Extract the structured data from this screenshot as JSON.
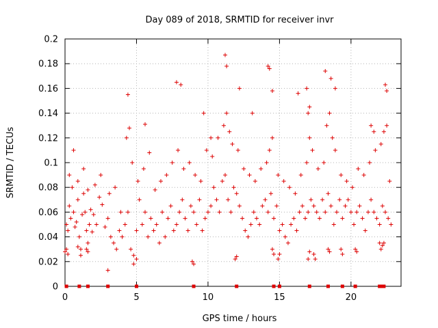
{
  "chart_data": {
    "type": "scatter",
    "title": "Day 089 of 2018, SRMTID for receiver invr",
    "xlabel": "GPS time / hours",
    "ylabel": "SRMTID / TECUs",
    "xlim": [
      0,
      23.5
    ],
    "ylim": [
      0,
      0.2
    ],
    "x_ticks": [
      0,
      5,
      10,
      15,
      20
    ],
    "y_ticks": [
      0,
      0.02,
      0.04,
      0.06,
      0.08,
      0.1,
      0.12,
      0.14,
      0.16,
      0.18,
      0.2
    ],
    "x_tick_labels": [
      "0",
      "5",
      "10",
      "15",
      "20"
    ],
    "y_tick_labels": [
      "0",
      "0.02",
      "0.04",
      "0.06",
      "0.08",
      "0.1",
      "0.12",
      "0.14",
      "0.16",
      "0.18",
      "0.2"
    ],
    "grid": true,
    "marker": "+",
    "color": "#dd0000",
    "series": [
      {
        "name": "SRMTID",
        "x": [
          0.1,
          0.2,
          0.3,
          0.4,
          0.5,
          0.6,
          0.7,
          0.8,
          0.9,
          1.0,
          1.1,
          1.2,
          1.3,
          1.4,
          1.5,
          1.6,
          1.7,
          1.8,
          1.9,
          2.0,
          2.2,
          2.4,
          2.6,
          2.8,
          3.0,
          3.2,
          3.4,
          3.6,
          3.8,
          4.0,
          4.2,
          4.4,
          4.6,
          4.8,
          5.0,
          5.2,
          5.4,
          5.6,
          5.8,
          6.0,
          6.2,
          6.4,
          6.6,
          6.8,
          7.0,
          7.2,
          7.4,
          7.6,
          7.8,
          8.0,
          8.2,
          8.4,
          8.6,
          8.8,
          9.0,
          9.2,
          9.4,
          9.6,
          9.8,
          10.0,
          10.2,
          10.4,
          10.6,
          10.8,
          11.0,
          11.2,
          11.4,
          11.6,
          11.8,
          12.0,
          12.2,
          12.4,
          12.6,
          12.8,
          13.0,
          13.2,
          13.4,
          13.6,
          13.8,
          14.0,
          14.2,
          14.4,
          14.6,
          14.8,
          15.0,
          15.2,
          15.4,
          15.6,
          15.8,
          16.0,
          16.2,
          16.4,
          16.6,
          16.8,
          17.0,
          17.2,
          17.4,
          17.6,
          17.8,
          18.0,
          18.2,
          18.4,
          18.6,
          18.8,
          19.0,
          19.2,
          19.4,
          19.6,
          19.8,
          20.0,
          20.2,
          20.4,
          20.6,
          20.8,
          21.0,
          21.2,
          21.4,
          21.6,
          21.8,
          22.0,
          22.2,
          22.4,
          22.6,
          22.8,
          0.3,
          0.6,
          0.9,
          1.3,
          1.6,
          2.1,
          2.5,
          3.1,
          3.5,
          3.9,
          4.3,
          4.7,
          5.1,
          5.5,
          5.9,
          6.3,
          6.7,
          7.1,
          7.5,
          7.9,
          8.3,
          8.7,
          9.1,
          9.5,
          9.9,
          10.3,
          10.7,
          11.1,
          11.3,
          11.5,
          11.7,
          12.1,
          12.5,
          12.9,
          13.3,
          13.7,
          14.1,
          14.3,
          14.5,
          14.9,
          15.3,
          15.7,
          16.1,
          16.5,
          16.9,
          17.1,
          17.3,
          17.7,
          18.1,
          18.3,
          18.5,
          18.7,
          18.9,
          19.3,
          19.7,
          20.1,
          20.5,
          20.9,
          21.3,
          21.7,
          22.1,
          22.3,
          22.5,
          22.7,
          4.4,
          4.5,
          5.6,
          7.8,
          8.1,
          9.7,
          10.2,
          11.2,
          11.3,
          12.2,
          13.1,
          14.2,
          14.3,
          14.5,
          16.3,
          16.9,
          17.0,
          17.1,
          18.2,
          18.6,
          18.9,
          21.4,
          21.6,
          22.4,
          22.5,
          0.0,
          0.1,
          0.2,
          0.9,
          1.1,
          1.5,
          1.6,
          3.0,
          4.8,
          5.0,
          8.9,
          9.0,
          11.9,
          12.0,
          14.5,
          14.6,
          14.9,
          15.0,
          17.0,
          17.1,
          17.4,
          17.5,
          18.4,
          18.5,
          19.3,
          19.4,
          20.3,
          20.4,
          22.0,
          22.1,
          22.2,
          22.3
        ],
        "y": [
          0.05,
          0.045,
          0.065,
          0.055,
          0.08,
          0.06,
          0.048,
          0.052,
          0.07,
          0.04,
          0.03,
          0.058,
          0.075,
          0.06,
          0.045,
          0.035,
          0.05,
          0.062,
          0.044,
          0.058,
          0.05,
          0.072,
          0.066,
          0.048,
          0.055,
          0.04,
          0.035,
          0.03,
          0.045,
          0.04,
          0.05,
          0.06,
          0.03,
          0.025,
          0.045,
          0.07,
          0.05,
          0.06,
          0.04,
          0.055,
          0.045,
          0.05,
          0.035,
          0.06,
          0.04,
          0.055,
          0.065,
          0.045,
          0.05,
          0.06,
          0.07,
          0.055,
          0.045,
          0.065,
          0.06,
          0.05,
          0.07,
          0.045,
          0.055,
          0.06,
          0.065,
          0.08,
          0.07,
          0.06,
          0.085,
          0.09,
          0.07,
          0.06,
          0.08,
          0.075,
          0.065,
          0.055,
          0.045,
          0.04,
          0.05,
          0.06,
          0.055,
          0.05,
          0.065,
          0.07,
          0.06,
          0.075,
          0.055,
          0.065,
          0.045,
          0.05,
          0.04,
          0.035,
          0.05,
          0.055,
          0.045,
          0.06,
          0.065,
          0.055,
          0.06,
          0.07,
          0.065,
          0.06,
          0.055,
          0.07,
          0.06,
          0.075,
          0.065,
          0.05,
          0.06,
          0.07,
          0.055,
          0.065,
          0.07,
          0.06,
          0.05,
          0.06,
          0.065,
          0.055,
          0.045,
          0.06,
          0.07,
          0.06,
          0.055,
          0.05,
          0.065,
          0.06,
          0.055,
          0.05,
          0.09,
          0.11,
          0.085,
          0.095,
          0.078,
          0.082,
          0.09,
          0.075,
          0.08,
          0.06,
          0.12,
          0.1,
          0.085,
          0.095,
          0.108,
          0.078,
          0.085,
          0.09,
          0.1,
          0.11,
          0.095,
          0.1,
          0.09,
          0.085,
          0.11,
          0.105,
          0.12,
          0.13,
          0.14,
          0.125,
          0.115,
          0.11,
          0.095,
          0.09,
          0.085,
          0.095,
          0.1,
          0.11,
          0.12,
          0.09,
          0.085,
          0.08,
          0.075,
          0.09,
          0.1,
          0.12,
          0.11,
          0.095,
          0.1,
          0.13,
          0.14,
          0.12,
          0.11,
          0.09,
          0.085,
          0.08,
          0.095,
          0.09,
          0.1,
          0.11,
          0.115,
          0.125,
          0.13,
          0.085,
          0.155,
          0.128,
          0.131,
          0.165,
          0.163,
          0.14,
          0.12,
          0.187,
          0.178,
          0.16,
          0.14,
          0.178,
          0.176,
          0.158,
          0.156,
          0.16,
          0.14,
          0.145,
          0.174,
          0.168,
          0.16,
          0.13,
          0.125,
          0.163,
          0.158,
          0.028,
          0.03,
          0.026,
          0.032,
          0.025,
          0.03,
          0.028,
          0.013,
          0.018,
          0.022,
          0.02,
          0.018,
          0.022,
          0.024,
          0.03,
          0.026,
          0.022,
          0.026,
          0.022,
          0.028,
          0.026,
          0.022,
          0.03,
          0.028,
          0.03,
          0.026,
          0.03,
          0.028,
          0.035,
          0.03,
          0.033,
          0.035
        ]
      }
    ],
    "axis_markers_x": [
      0.1,
      1.0,
      1.6,
      3.0,
      5.0,
      9.0,
      12.0,
      14.6,
      15.0,
      17.1,
      18.4,
      19.4,
      20.3,
      22.0,
      22.1,
      22.3
    ]
  }
}
